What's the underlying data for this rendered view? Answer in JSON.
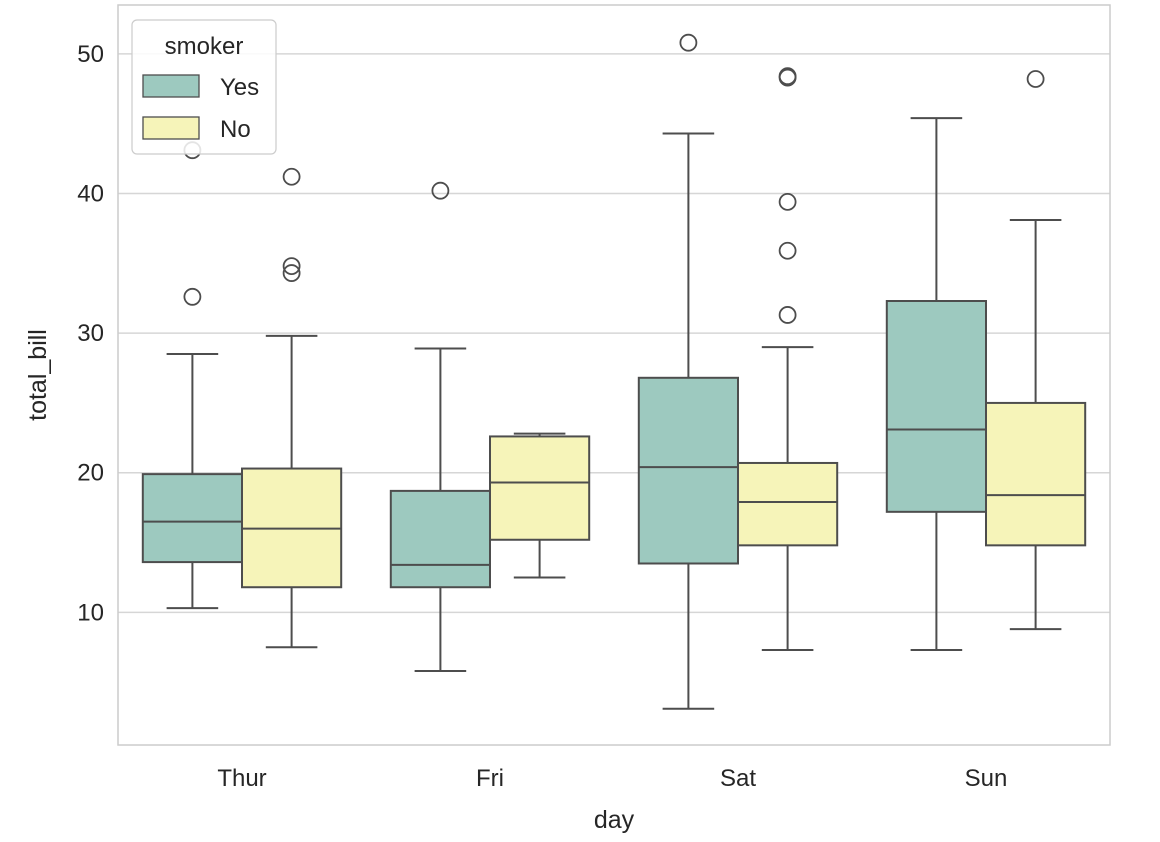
{
  "chart_data": {
    "type": "box",
    "title": "",
    "xlabel": "day",
    "ylabel": "total_bill",
    "categories": [
      "Thur",
      "Fri",
      "Sat",
      "Sun"
    ],
    "ylim": [
      0.5,
      53.5
    ],
    "yticks": [
      10,
      20,
      30,
      40,
      50
    ],
    "grid": "horizontal",
    "legend": {
      "title": "smoker",
      "placement": "top-left"
    },
    "colors": {
      "Yes": "#9dc9bf",
      "No": "#f6f4b9",
      "edge": "#4d4d4d",
      "grid": "#d6d6d6",
      "frame": "#cccccc"
    },
    "series": [
      {
        "name": "Yes",
        "boxes": [
          {
            "day": "Thur",
            "whislo": 10.3,
            "q1": 13.6,
            "median": 16.5,
            "q3": 19.9,
            "whishi": 28.5,
            "fliers": [
              32.6,
              43.1
            ]
          },
          {
            "day": "Fri",
            "whislo": 5.8,
            "q1": 11.8,
            "median": 13.4,
            "q3": 18.7,
            "whishi": 28.9,
            "fliers": [
              40.2
            ]
          },
          {
            "day": "Sat",
            "whislo": 3.1,
            "q1": 13.5,
            "median": 20.4,
            "q3": 26.8,
            "whishi": 44.3,
            "fliers": [
              50.8
            ]
          },
          {
            "day": "Sun",
            "whislo": 7.3,
            "q1": 17.2,
            "median": 23.1,
            "q3": 32.3,
            "whishi": 45.4,
            "fliers": []
          }
        ]
      },
      {
        "name": "No",
        "boxes": [
          {
            "day": "Thur",
            "whislo": 7.5,
            "q1": 11.8,
            "median": 16.0,
            "q3": 20.3,
            "whishi": 29.8,
            "fliers": [
              34.3,
              34.8,
              41.2
            ]
          },
          {
            "day": "Fri",
            "whislo": 12.5,
            "q1": 15.2,
            "median": 19.3,
            "q3": 22.6,
            "whishi": 22.8,
            "fliers": []
          },
          {
            "day": "Sat",
            "whislo": 7.3,
            "q1": 14.8,
            "median": 17.9,
            "q3": 20.7,
            "whishi": 29.0,
            "fliers": [
              31.3,
              35.9,
              39.4,
              48.3,
              48.4
            ]
          },
          {
            "day": "Sun",
            "whislo": 8.8,
            "q1": 14.8,
            "median": 18.4,
            "q3": 25.0,
            "whishi": 38.1,
            "fliers": [
              48.2
            ]
          }
        ]
      }
    ]
  }
}
